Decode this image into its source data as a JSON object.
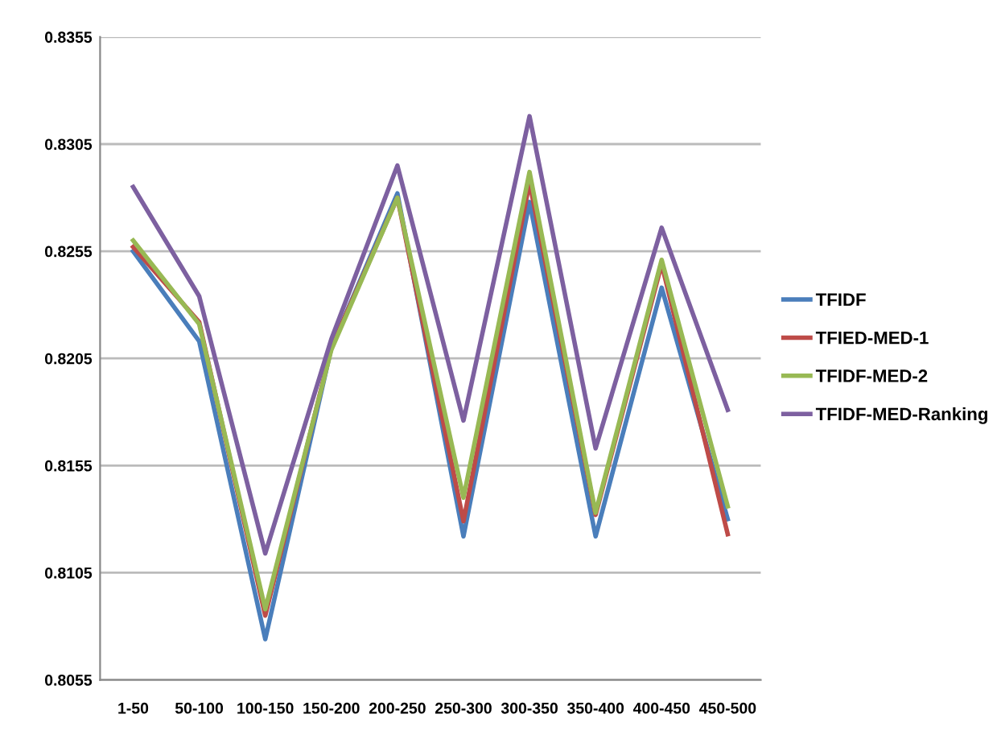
{
  "chart_data": {
    "type": "line",
    "categories": [
      "1-50",
      "50-100",
      "100-150",
      "150-200",
      "200-250",
      "250-300",
      "300-350",
      "350-400",
      "400-450",
      "450-500"
    ],
    "series": [
      {
        "name": "TFIDF",
        "color": "#4a7ebb",
        "values": [
          0.8255,
          0.8213,
          0.8074,
          0.821,
          0.8282,
          0.8122,
          0.8278,
          0.8122,
          0.8238,
          0.813
        ]
      },
      {
        "name": "TFIED-MED-1",
        "color": "#be4b48",
        "values": [
          0.8257,
          0.8222,
          0.8085,
          0.821,
          0.828,
          0.8129,
          0.8287,
          0.8132,
          0.8249,
          0.8123
        ]
      },
      {
        "name": "TFIDF-MED-2",
        "color": "#98b954",
        "values": [
          0.826,
          0.8221,
          0.8088,
          0.8209,
          0.828,
          0.814,
          0.8292,
          0.8133,
          0.8251,
          0.8136
        ]
      },
      {
        "name": "TFIDF-MED-Ranking",
        "color": "#7d60a0",
        "values": [
          0.8285,
          0.8234,
          0.8114,
          0.8214,
          0.8295,
          0.8176,
          0.8318,
          0.8163,
          0.8266,
          0.8181
        ]
      }
    ],
    "ylim": [
      0.8055,
      0.8355
    ],
    "yticks": [
      0.8055,
      0.8105,
      0.8155,
      0.8205,
      0.8255,
      0.8305,
      0.8355
    ],
    "grid": "y",
    "legend": "right",
    "marker": "none",
    "line_style": "solid"
  }
}
